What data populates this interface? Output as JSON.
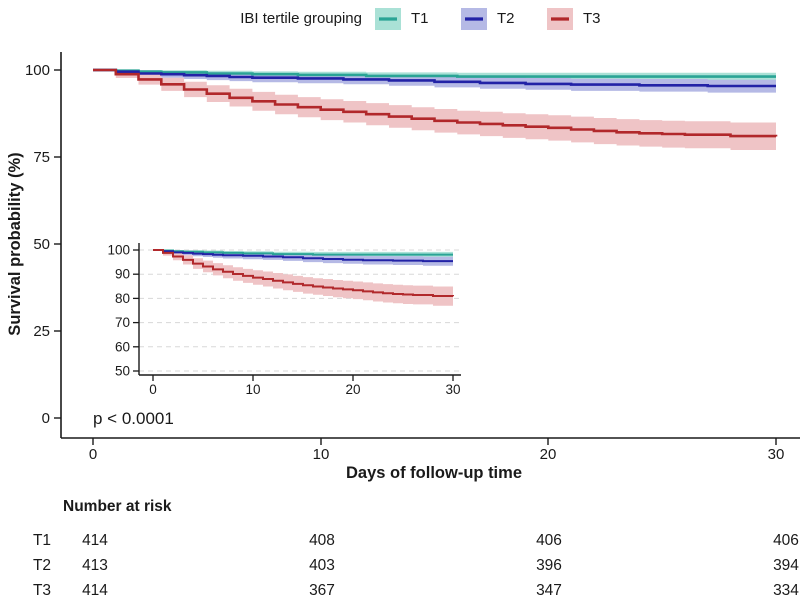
{
  "legend": {
    "title": "IBI tertile grouping"
  },
  "chart_data": {
    "type": "line",
    "subtype": "kaplan-meier-step-with-confidence-bands",
    "title": "",
    "xlabel": "Days of follow-up time",
    "ylabel": "Survival probability (%)",
    "xlim": [
      0,
      30
    ],
    "ylim": [
      0,
      100
    ],
    "xticks": [
      0,
      10,
      20,
      30
    ],
    "yticks": [
      100,
      75,
      50,
      25,
      0
    ],
    "grid": "off",
    "legend_position": "top",
    "annotation": "p < 0.0001",
    "series": [
      {
        "name": "T1",
        "color": "#2aa495",
        "fill": "#aae1d6",
        "points_format": [
          "day",
          "survival_pct",
          "ci_low",
          "ci_high"
        ],
        "points": [
          [
            0,
            100,
            100,
            100
          ],
          [
            1,
            99.8,
            99.3,
            100
          ],
          [
            2,
            99.5,
            98.9,
            100
          ],
          [
            3,
            99.3,
            98.6,
            99.9
          ],
          [
            5,
            99.0,
            98.2,
            99.8
          ],
          [
            7,
            98.8,
            97.9,
            99.6
          ],
          [
            9,
            98.6,
            97.6,
            99.5
          ],
          [
            12,
            98.3,
            97.2,
            99.3
          ],
          [
            16,
            98.1,
            96.9,
            99.2
          ],
          [
            30,
            98.1,
            96.9,
            99.2
          ]
        ]
      },
      {
        "name": "T2",
        "color": "#2222a6",
        "fill": "#b5b9e5",
        "points_format": [
          "day",
          "survival_pct",
          "ci_low",
          "ci_high"
        ],
        "points": [
          [
            0,
            100,
            100,
            100
          ],
          [
            1,
            99.5,
            98.9,
            100
          ],
          [
            2,
            99.0,
            98.1,
            99.9
          ],
          [
            3,
            98.8,
            97.8,
            99.7
          ],
          [
            4,
            98.5,
            97.4,
            99.5
          ],
          [
            5,
            98.3,
            97.1,
            99.4
          ],
          [
            6,
            98.0,
            96.8,
            99.2
          ],
          [
            7,
            97.8,
            96.5,
            99.0
          ],
          [
            9,
            97.6,
            96.2,
            98.9
          ],
          [
            11,
            97.3,
            95.9,
            98.7
          ],
          [
            13,
            97.0,
            95.5,
            98.5
          ],
          [
            15,
            96.6,
            95.0,
            98.2
          ],
          [
            17,
            96.3,
            94.6,
            97.9
          ],
          [
            19,
            96.0,
            94.3,
            97.7
          ],
          [
            21,
            95.8,
            94.0,
            97.5
          ],
          [
            24,
            95.6,
            93.8,
            97.4
          ],
          [
            27,
            95.4,
            93.5,
            97.2
          ],
          [
            30,
            95.4,
            93.5,
            97.2
          ]
        ]
      },
      {
        "name": "T3",
        "color": "#b1282b",
        "fill": "#efc4c6",
        "points_format": [
          "day",
          "survival_pct",
          "ci_low",
          "ci_high"
        ],
        "points": [
          [
            0,
            100,
            100,
            100
          ],
          [
            1,
            98.8,
            97.7,
            99.8
          ],
          [
            2,
            97.3,
            95.8,
            98.9
          ],
          [
            3,
            95.9,
            94.0,
            97.8
          ],
          [
            4,
            94.4,
            92.2,
            96.6
          ],
          [
            5,
            93.2,
            90.8,
            95.6
          ],
          [
            6,
            92.0,
            89.5,
            94.6
          ],
          [
            7,
            91.0,
            88.3,
            93.7
          ],
          [
            8,
            90.1,
            87.3,
            92.9
          ],
          [
            9,
            89.3,
            86.4,
            92.2
          ],
          [
            10,
            88.6,
            85.6,
            91.6
          ],
          [
            11,
            88.0,
            84.9,
            91.1
          ],
          [
            12,
            87.3,
            84.1,
            90.5
          ],
          [
            13,
            86.6,
            83.4,
            89.9
          ],
          [
            14,
            86.0,
            82.7,
            89.3
          ],
          [
            15,
            85.4,
            82.0,
            88.8
          ],
          [
            16,
            84.9,
            81.5,
            88.3
          ],
          [
            17,
            84.5,
            81.0,
            88.0
          ],
          [
            18,
            84.1,
            80.5,
            87.6
          ],
          [
            19,
            83.7,
            80.1,
            87.3
          ],
          [
            20,
            83.4,
            79.7,
            87.0
          ],
          [
            21,
            82.9,
            79.2,
            86.6
          ],
          [
            22,
            82.5,
            78.7,
            86.2
          ],
          [
            23,
            82.1,
            78.3,
            85.9
          ],
          [
            24,
            81.8,
            78.0,
            85.6
          ],
          [
            25,
            81.6,
            77.7,
            85.4
          ],
          [
            26,
            81.4,
            77.5,
            85.3
          ],
          [
            28,
            81.0,
            77.0,
            84.9
          ],
          [
            30,
            80.9,
            76.9,
            84.8
          ]
        ]
      }
    ],
    "inset": {
      "description": "zoomed view of same curves, y-axis 50-100",
      "ylim": [
        50,
        100
      ],
      "yticks": [
        100,
        90,
        80,
        70,
        60,
        50
      ],
      "xticks": [
        0,
        10,
        20,
        30
      ],
      "grid": "horizontal-dashed"
    },
    "risk_table": {
      "title": "Number at risk",
      "time_points": [
        0,
        10,
        20,
        30
      ],
      "rows": [
        {
          "label": "T1",
          "values": [
            "414",
            "408",
            "406",
            "406"
          ]
        },
        {
          "label": "T2",
          "values": [
            "413",
            "403",
            "396",
            "394"
          ]
        },
        {
          "label": "T3",
          "values": [
            "414",
            "367",
            "347",
            "334"
          ]
        }
      ]
    }
  }
}
